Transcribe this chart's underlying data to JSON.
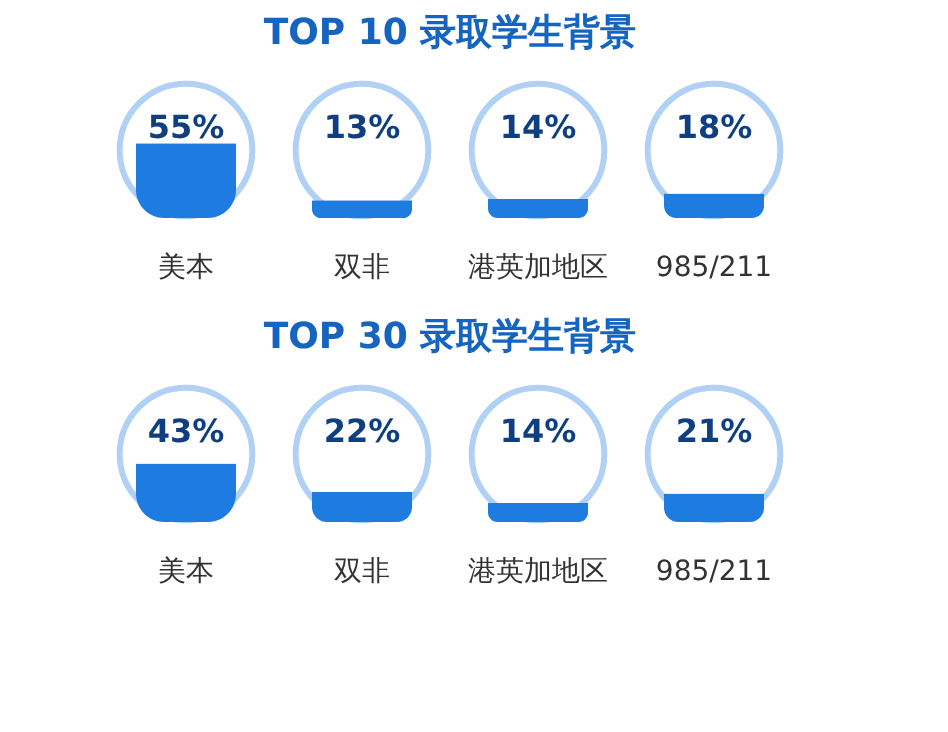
{
  "chart_data": [
    {
      "type": "other",
      "title": "TOP 10 录取学生背景",
      "categories": [
        "美本",
        "双非",
        "港英加地区",
        "985/211"
      ],
      "values": [
        55,
        13,
        14,
        18
      ],
      "value_labels": [
        "55%",
        "13%",
        "14%",
        "18%"
      ],
      "color": "#1e7be0"
    },
    {
      "type": "other",
      "title": "TOP 30 录取学生背景",
      "categories": [
        "美本",
        "双非",
        "港英加地区",
        "985/211"
      ],
      "values": [
        43,
        22,
        14,
        21
      ],
      "value_labels": [
        "43%",
        "22%",
        "14%",
        "21%"
      ],
      "color": "#1e7be0"
    }
  ]
}
